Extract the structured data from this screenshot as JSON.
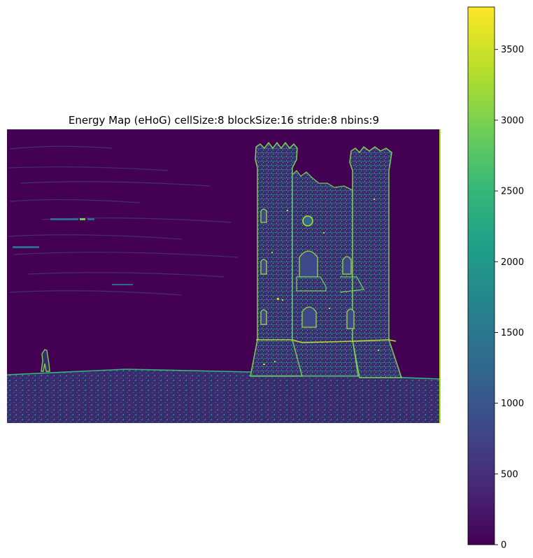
{
  "chart_data": {
    "type": "heatmap",
    "title": "Energy Map (eHoG) cellSize:8 blockSize:16 stride:8 nbins:9",
    "xlabel": "",
    "ylabel": "",
    "axes_visible": false,
    "colormap": "viridis",
    "colormap_stops": [
      "#440154",
      "#482878",
      "#3e4989",
      "#31688e",
      "#26828e",
      "#1f9e89",
      "#35b779",
      "#6ece58",
      "#b5de2b",
      "#fde725"
    ],
    "colorbar": {
      "range": [
        0,
        3800
      ],
      "ticks": [
        0,
        500,
        1000,
        1500,
        2000,
        2500,
        3000,
        3500
      ],
      "tick_labels": [
        "0",
        "500",
        "1000",
        "1500",
        "2000",
        "2500",
        "3000",
        "3500"
      ]
    },
    "image_content": "edge-energy map of a castle tower on a hill with a lone walker"
  }
}
